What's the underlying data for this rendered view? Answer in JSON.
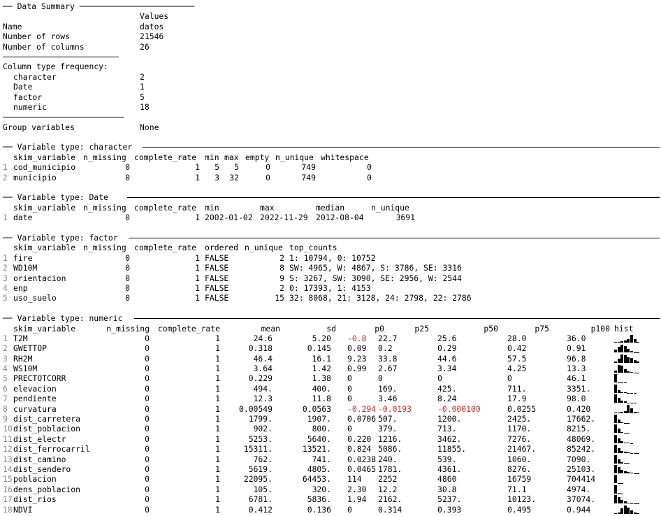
{
  "summary": {
    "header": "── Data Summary ────────────────────────",
    "values_label": "Values",
    "rows": [
      {
        "label": "Name",
        "value": "datos"
      },
      {
        "label": "Number of rows",
        "value": "21546"
      },
      {
        "label": "Number of columns",
        "value": "26"
      }
    ],
    "coltype_label": "Column type frequency:",
    "coltypes": [
      {
        "label": "character",
        "value": "2"
      },
      {
        "label": "Date",
        "value": "1"
      },
      {
        "label": "factor",
        "value": "5"
      },
      {
        "label": "numeric",
        "value": "18"
      }
    ],
    "group_label": "Group variables",
    "group_value": "None"
  },
  "character": {
    "header": "── Variable type: character",
    "columns": [
      "skim_variable",
      "n_missing",
      "complete_rate",
      "min",
      "max",
      "empty",
      "n_unique",
      "whitespace"
    ],
    "rows": [
      [
        "1",
        "cod_municipio",
        "0",
        "1",
        "5",
        "5",
        "0",
        "749",
        "0"
      ],
      [
        "2",
        "municipio",
        "0",
        "1",
        "3",
        "32",
        "0",
        "749",
        "0"
      ]
    ]
  },
  "date": {
    "header": "── Variable type: Date",
    "columns": [
      "skim_variable",
      "n_missing",
      "complete_rate",
      "min",
      "max",
      "median",
      "n_unique"
    ],
    "rows": [
      [
        "1",
        "date",
        "0",
        "1",
        "2002-01-02",
        "2022-11-29",
        "2012-08-04",
        "3691"
      ]
    ]
  },
  "factor": {
    "header": "── Variable type: factor",
    "columns": [
      "skim_variable",
      "n_missing",
      "complete_rate",
      "ordered",
      "n_unique",
      "top_counts"
    ],
    "rows": [
      [
        "1",
        "fire",
        "0",
        "1",
        "FALSE",
        "2",
        "1: 10794, 0: 10752"
      ],
      [
        "2",
        "WD10M",
        "0",
        "1",
        "FALSE",
        "8",
        "SW: 4965, W: 4867, S: 3786, SE: 3316"
      ],
      [
        "3",
        "orientacion",
        "0",
        "1",
        "FALSE",
        "9",
        "S: 3267, SW: 3090, SE: 2956, W: 2544"
      ],
      [
        "4",
        "enp",
        "0",
        "1",
        "FALSE",
        "2",
        "0: 17393, 1: 4153"
      ],
      [
        "5",
        "uso_suelo",
        "0",
        "1",
        "FALSE",
        "15",
        "32: 8068, 21: 3128, 24: 2798, 22: 2786"
      ]
    ]
  },
  "numeric": {
    "header": "── Variable type: numeric",
    "columns": [
      "skim_variable",
      "n_missing",
      "complete_rate",
      "mean",
      "sd",
      "p0",
      "p25",
      "p50",
      "p75",
      "p100",
      "hist"
    ],
    "rows": [
      [
        "1",
        "T2M",
        "0",
        "1",
        "24.6",
        "5.20",
        "-0.8",
        "22.7",
        "25.6",
        "28.0",
        "36.0"
      ],
      [
        "2",
        "GWETTOP",
        "0",
        "1",
        "0.318",
        "0.145",
        "0.09",
        "0.2",
        "0.29",
        "0.42",
        "0.91"
      ],
      [
        "3",
        "RH2M",
        "0",
        "1",
        "46.4",
        "16.1",
        "9.23",
        "33.8",
        "44.6",
        "57.5",
        "96.8"
      ],
      [
        "4",
        "WS10M",
        "0",
        "1",
        "3.64",
        "1.42",
        "0.99",
        "2.67",
        "3.34",
        "4.25",
        "13.3"
      ],
      [
        "5",
        "PRECTOTCORR",
        "0",
        "1",
        "0.229",
        "1.38",
        "0",
        "0",
        "0",
        "0",
        "46.1"
      ],
      [
        "6",
        "elevacion",
        "0",
        "1",
        "494.",
        "400.",
        "0",
        "169.",
        "425.",
        "711.",
        "3351."
      ],
      [
        "7",
        "pendiente",
        "0",
        "1",
        "12.3",
        "11.8",
        "0",
        "3.46",
        "8.24",
        "17.9",
        "98.0"
      ],
      [
        "8",
        "curvatura",
        "0",
        "1",
        "0.00549",
        "0.0563",
        "-0.294",
        "-0.0193",
        "-0.000100",
        "0.0255",
        "0.420"
      ],
      [
        "9",
        "dist_carretera",
        "0",
        "1",
        "1799.",
        "1907.",
        "0.0706",
        "507.",
        "1200.",
        "2425.",
        "17662."
      ],
      [
        "10",
        "dist_poblacion",
        "0",
        "1",
        "902.",
        "800.",
        "0",
        "379.",
        "713.",
        "1170.",
        "8215."
      ],
      [
        "11",
        "dist_electr",
        "0",
        "1",
        "5253.",
        "5640.",
        "0.220",
        "1216.",
        "3462.",
        "7276.",
        "48069."
      ],
      [
        "12",
        "dist_ferrocarril",
        "0",
        "1",
        "15311.",
        "13521.",
        "0.824",
        "5086.",
        "11855.",
        "21467.",
        "85242."
      ],
      [
        "13",
        "dist_camino",
        "0",
        "1",
        "762.",
        "741.",
        "0.0238",
        "240.",
        "539.",
        "1060.",
        "7090."
      ],
      [
        "14",
        "dist_sendero",
        "0",
        "1",
        "5619.",
        "4805.",
        "0.0465",
        "1781.",
        "4361.",
        "8276.",
        "25103."
      ],
      [
        "15",
        "poblacion",
        "0",
        "1",
        "22095.",
        "64453.",
        "114",
        "2252",
        "4860",
        "16759",
        "704414"
      ],
      [
        "16",
        "dens_poblacion",
        "0",
        "1",
        "105.",
        "320.",
        "2.30",
        "12.2",
        "30.8",
        "71.1",
        "4974."
      ],
      [
        "17",
        "dist_rios",
        "0",
        "1",
        "6781.",
        "5836.",
        "1.94",
        "2162.",
        "5237.",
        "10123.",
        "37074."
      ],
      [
        "18",
        "NDVI",
        "0",
        "1",
        "0.412",
        "0.136",
        "0",
        "0.314",
        "0.393",
        "0.495",
        "0.944"
      ]
    ],
    "hist": [
      [
        0.05,
        0.05,
        0.15,
        0.25,
        0.45,
        0.95,
        0.45,
        0.1
      ],
      [
        0.35,
        0.7,
        0.95,
        0.8,
        0.45,
        0.15,
        0.05,
        0.02
      ],
      [
        0.15,
        0.45,
        0.95,
        0.9,
        0.65,
        0.55,
        0.3,
        0.15
      ],
      [
        0.25,
        0.95,
        0.8,
        0.4,
        0.15,
        0.05,
        0.02,
        0.02
      ],
      [
        1,
        0.02,
        0.02,
        0.02,
        0,
        0,
        0,
        0
      ],
      [
        1,
        0.35,
        0.1,
        0.04,
        0.02,
        0.02,
        0.02,
        0
      ],
      [
        1,
        0.6,
        0.3,
        0.15,
        0.06,
        0.03,
        0.02,
        0
      ],
      [
        0.02,
        0.05,
        0.1,
        0.25,
        0.95,
        0.55,
        0.12,
        0.03
      ],
      [
        1,
        0.4,
        0.12,
        0.04,
        0.02,
        0,
        0,
        0
      ],
      [
        1,
        0.55,
        0.15,
        0.05,
        0.02,
        0,
        0,
        0
      ],
      [
        1,
        0.55,
        0.2,
        0.08,
        0.03,
        0.02,
        0,
        0
      ],
      [
        1,
        0.6,
        0.3,
        0.15,
        0.08,
        0.05,
        0.03,
        0.02
      ],
      [
        1,
        0.45,
        0.12,
        0.04,
        0.02,
        0,
        0,
        0
      ],
      [
        1,
        0.75,
        0.45,
        0.25,
        0.15,
        0.08,
        0.03,
        0.02
      ],
      [
        1,
        0.03,
        0.02,
        0,
        0,
        0,
        0,
        0
      ],
      [
        1,
        0.04,
        0.02,
        0,
        0,
        0,
        0,
        0
      ],
      [
        1,
        0.75,
        0.45,
        0.25,
        0.12,
        0.05,
        0.03,
        0.02
      ],
      [
        0.02,
        0.1,
        0.6,
        0.95,
        0.7,
        0.4,
        0.15,
        0.04
      ]
    ]
  },
  "colors": {
    "negative": "#c62828",
    "rownum": "#8a8a8a",
    "text": "#000000"
  }
}
